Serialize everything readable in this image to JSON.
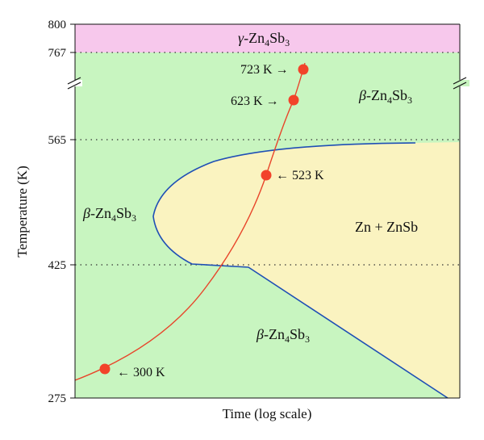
{
  "chart_data": {
    "type": "phase-diagram",
    "xlabel": "Time (log scale)",
    "ylabel": "Temperature (K)",
    "y_ticks": [
      "800",
      "767",
      "565",
      "425",
      "275"
    ],
    "regions": [
      {
        "name": "gamma",
        "greek": "γ",
        "phase": "-Zn",
        "sub1": "4",
        "mid": "Sb",
        "sub2": "3",
        "color": "#f7c8ec"
      },
      {
        "name": "beta-high",
        "greek": "β",
        "phase": "-Zn",
        "sub1": "4",
        "mid": "Sb",
        "sub2": "3",
        "color": "#c8f5c0"
      },
      {
        "name": "beta-mid",
        "greek": "β",
        "phase": "-Zn",
        "sub1": "4",
        "mid": "Sb",
        "sub2": "3",
        "color": "#c8f5c0"
      },
      {
        "name": "beta-low",
        "greek": "β",
        "phase": "-Zn",
        "sub1": "4",
        "mid": "Sb",
        "sub2": "3",
        "color": "#c8f5c0"
      },
      {
        "name": "zn-znsb",
        "label": "Zn + ZnSb",
        "color": "#faf3c0"
      }
    ],
    "heating_points": [
      {
        "label": "723 K →",
        "temp": 723
      },
      {
        "label": "623 K →",
        "temp": 623
      },
      {
        "label": "← 523 K",
        "temp": 523
      },
      {
        "label": "← 300 K",
        "temp": 300
      }
    ],
    "colors": {
      "curve": "#e8452a",
      "point": "#f2432a",
      "boundary": "#1f4fb5",
      "dotted": "#333333"
    }
  }
}
